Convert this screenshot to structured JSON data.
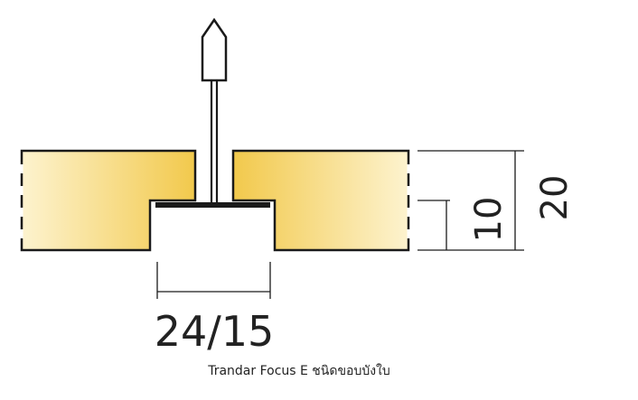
{
  "diagram": {
    "width_label": "24/15",
    "height_label_small": "10",
    "height_label_large": "20",
    "colors": {
      "panel_fill_light": "#fdf3cf",
      "panel_fill_dark": "#f2c94c",
      "outline": "#1a1a1a",
      "grid_bar": "#ffffff"
    }
  },
  "caption": "Trandar Focus E ชนิดขอบบังใบ"
}
